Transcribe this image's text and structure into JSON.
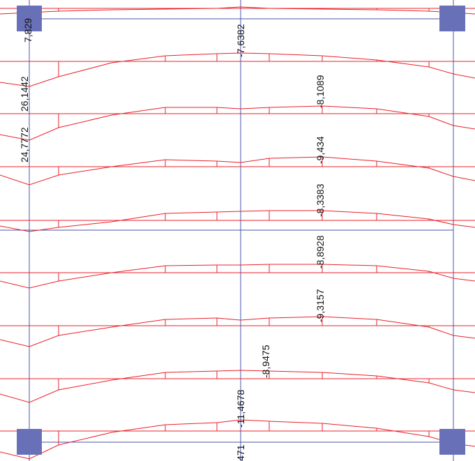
{
  "colors": {
    "background": "#ffffff",
    "frame_line": "#4a55a8",
    "moment_line": "#e8202a",
    "support_fill": "#6870b8",
    "text": "#111111"
  },
  "supports": [
    "top-left",
    "top-right",
    "bottom-left",
    "bottom-right"
  ],
  "moment_labels": [
    {
      "id": "label-7829",
      "text": "7,829"
    },
    {
      "id": "label-7-6382",
      "text": "-7,6382"
    },
    {
      "id": "label-26-1442",
      "text": "26,1442"
    },
    {
      "id": "label-8-1089",
      "text": "-8,1089"
    },
    {
      "id": "label-24-7772",
      "text": "24,7772"
    },
    {
      "id": "label-9-434",
      "text": "-9,434"
    },
    {
      "id": "label-8-3383",
      "text": "-8,3383"
    },
    {
      "id": "label-8-8928",
      "text": "-8,8928"
    },
    {
      "id": "label-9-3157",
      "text": "-9,3157"
    },
    {
      "id": "label-8-9475",
      "text": "-8,9475"
    },
    {
      "id": "label-11-4678",
      "text": "-11,4678"
    },
    {
      "id": "label-471",
      "text": "471"
    }
  ]
}
